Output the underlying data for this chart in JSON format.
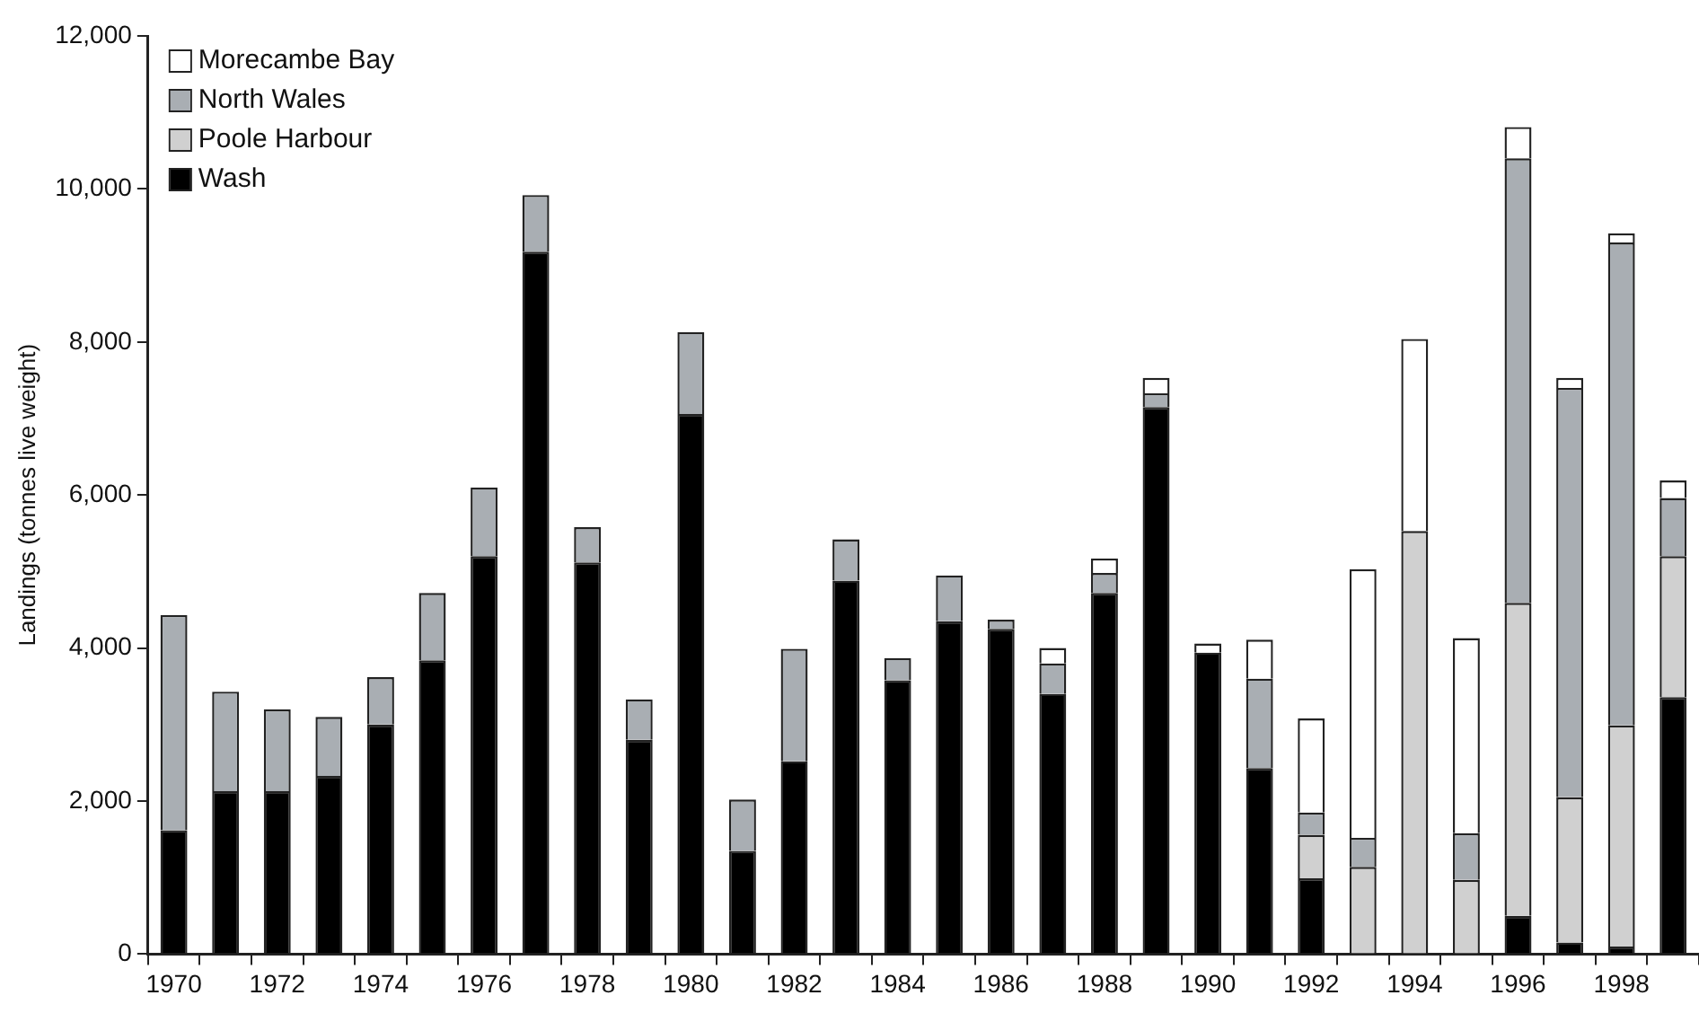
{
  "chart_data": {
    "type": "bar",
    "stacked": true,
    "ylabel": "Landings (tonnes live weight)",
    "categories": [
      "1970",
      null,
      "1972",
      null,
      "1974",
      null,
      "1976",
      null,
      "1978",
      null,
      "1980",
      null,
      "1982",
      null,
      "1984",
      null,
      "1986",
      null,
      "1988",
      null,
      "1990",
      null,
      "1992",
      null,
      "1994",
      null,
      "1996",
      null,
      "1998",
      null
    ],
    "series": [
      {
        "name": "Wash",
        "color": "#000000",
        "values": [
          1620,
          2130,
          2130,
          2330,
          3000,
          3840,
          5200,
          9180,
          5120,
          2800,
          7060,
          1350,
          2520,
          4880,
          3580,
          4350,
          4250,
          3400,
          4720,
          7150,
          3940,
          2430,
          990,
          0,
          0,
          0,
          500,
          150,
          100,
          3360
        ]
      },
      {
        "name": "Poole Harbour",
        "color": "#d0d0d0",
        "values": [
          0,
          0,
          0,
          0,
          0,
          0,
          0,
          0,
          0,
          0,
          0,
          0,
          0,
          0,
          0,
          0,
          0,
          0,
          0,
          0,
          0,
          0,
          570,
          1140,
          5530,
          970,
          4090,
          1900,
          2890,
          1840
        ]
      },
      {
        "name": "North Wales",
        "color": "#a9aeb3",
        "values": [
          2810,
          1300,
          1070,
          770,
          620,
          880,
          900,
          740,
          460,
          530,
          1070,
          670,
          1470,
          540,
          290,
          600,
          120,
          400,
          260,
          180,
          null,
          1170,
          290,
          380,
          null,
          610,
          5810,
          5350,
          6310,
          760
        ]
      },
      {
        "name": "Morecambe Bay",
        "color": "#ffffff",
        "values": [
          0,
          0,
          0,
          0,
          0,
          0,
          0,
          0,
          0,
          0,
          0,
          0,
          0,
          0,
          0,
          0,
          null,
          200,
          190,
          200,
          120,
          510,
          1230,
          3510,
          2510,
          2550,
          410,
          130,
          120,
          230
        ]
      }
    ],
    "ylim": [
      0,
      12000
    ],
    "yticks": [
      {
        "value": 0,
        "label": "0"
      },
      {
        "value": 2000,
        "label": "2,000"
      },
      {
        "value": 4000,
        "label": "4,000"
      },
      {
        "value": 6000,
        "label": "6,000"
      },
      {
        "value": 8000,
        "label": "8,000"
      },
      {
        "value": 10000,
        "label": "10,000"
      },
      {
        "value": 12000,
        "label": "12,000"
      }
    ],
    "grid": false,
    "legend": "top left"
  }
}
